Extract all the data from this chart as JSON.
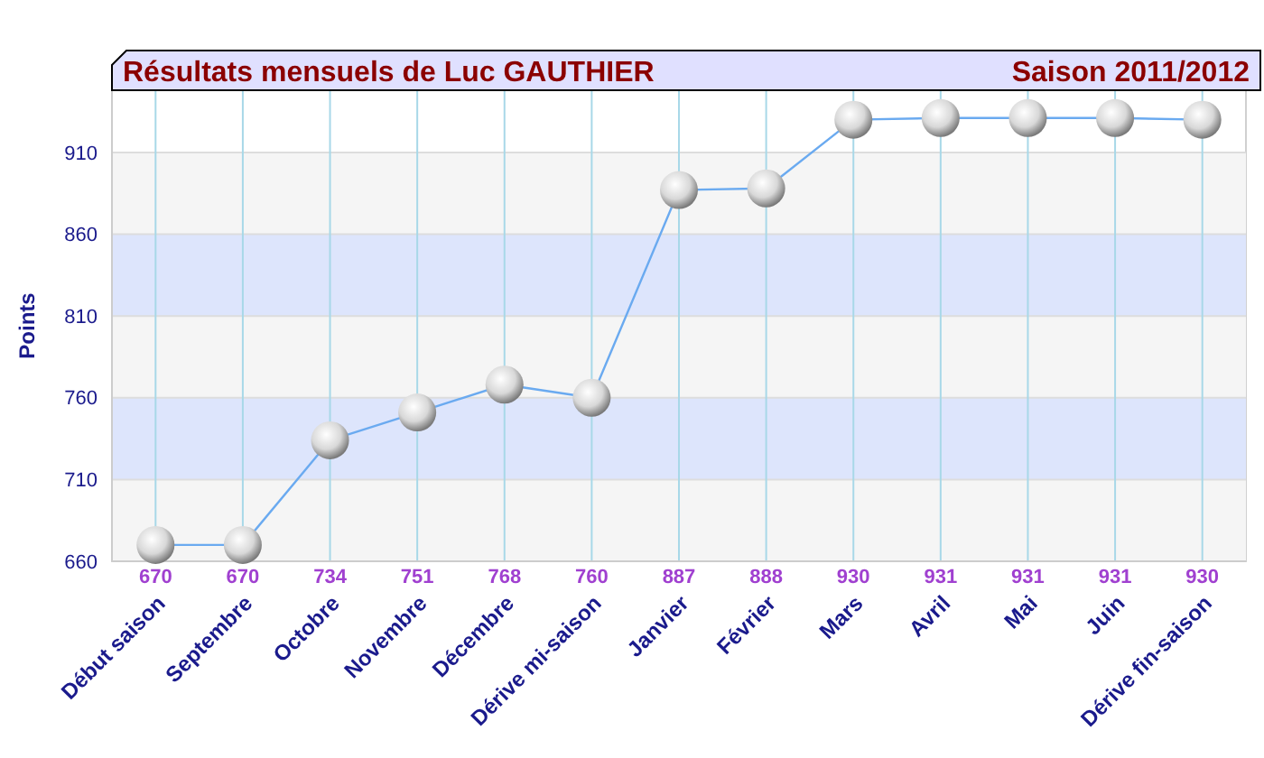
{
  "chart_data": {
    "type": "line",
    "title": "Résultats mensuels de  Luc GAUTHIER",
    "subtitle": "Saison 2011/2012",
    "ylabel": "Points",
    "categories": [
      "Début saison",
      "Septembre",
      "Octobre",
      "Novembre",
      "Décembre",
      "Dérive mi-saison",
      "Janvier",
      "Février",
      "Mars",
      "Avril",
      "Mai",
      "Juin",
      "Dérive fin-saison"
    ],
    "series": [
      {
        "color": "#6aaaf0",
        "values": [
          670,
          670,
          734,
          751,
          768,
          760,
          887,
          888,
          930,
          931,
          931,
          931,
          930
        ]
      }
    ],
    "ylim": [
      660,
      948
    ],
    "yticks": [
      660,
      710,
      760,
      810,
      860,
      910
    ],
    "bands": [
      {
        "axis": "y",
        "from": 660,
        "to": 710,
        "color": "#f5f5f5"
      },
      {
        "axis": "y",
        "from": 710,
        "to": 760,
        "color": "#dde5fc"
      },
      {
        "axis": "y",
        "from": 760,
        "to": 810,
        "color": "#f5f5f5"
      },
      {
        "axis": "y",
        "from": 810,
        "to": 860,
        "color": "#dde5fc"
      },
      {
        "axis": "y",
        "from": 860,
        "to": 910,
        "color": "#f5f5f5"
      }
    ],
    "grid": true,
    "marker": "circle",
    "data_labels": true
  }
}
